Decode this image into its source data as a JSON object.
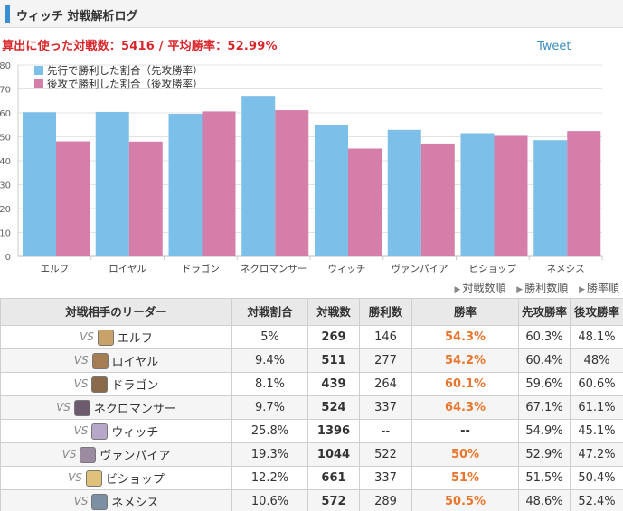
{
  "header": {
    "title": "ウィッチ 対戦解析ログ"
  },
  "summary": {
    "text": "算出に使った対戦数：5416 / 平均勝率：52.99%"
  },
  "tweet_label": "Tweet",
  "colors": {
    "first": "#7cbfe9",
    "second": "#d57ea9",
    "accent": "#3a8fd2",
    "rate": "#e8762d"
  },
  "chart_data": {
    "type": "bar",
    "categories": [
      "エルフ",
      "ロイヤル",
      "ドラゴン",
      "ネクロマンサー",
      "ウィッチ",
      "ヴァンパイア",
      "ビショップ",
      "ネメシス"
    ],
    "series": [
      {
        "name": "先行で勝利した割合（先攻勝率）",
        "values": [
          60.3,
          60.4,
          59.6,
          67.1,
          54.9,
          52.9,
          51.5,
          48.6
        ]
      },
      {
        "name": "後攻で勝利した割合（後攻勝率）",
        "values": [
          48.1,
          48,
          60.6,
          61.1,
          45.1,
          47.2,
          50.4,
          52.4
        ]
      }
    ],
    "ylim": [
      0,
      80
    ],
    "yticks": [
      0,
      10,
      20,
      30,
      40,
      50,
      60,
      70,
      80
    ],
    "grid": true,
    "legend": "top-left"
  },
  "sort_links": [
    "対戦数順",
    "勝利数順",
    "勝率順"
  ],
  "table": {
    "headers": [
      "対戦相手のリーダー",
      "対戦割合",
      "対戦数",
      "勝利数",
      "勝率",
      "先攻勝率",
      "後攻勝率"
    ],
    "vs_label": "VS",
    "rows": [
      {
        "name": "エルフ",
        "ratio": "5%",
        "games": "269",
        "wins": "146",
        "rate": "54.3%",
        "first": "60.3%",
        "second": "48.1%",
        "icon": "elf-leader-icon",
        "icon_color": "#c9a26a"
      },
      {
        "name": "ロイヤル",
        "ratio": "9.4%",
        "games": "511",
        "wins": "277",
        "rate": "54.2%",
        "first": "60.4%",
        "second": "48%",
        "icon": "royal-leader-icon",
        "icon_color": "#a67c52"
      },
      {
        "name": "ドラゴン",
        "ratio": "8.1%",
        "games": "439",
        "wins": "264",
        "rate": "60.1%",
        "first": "59.6%",
        "second": "60.6%",
        "icon": "dragon-leader-icon",
        "icon_color": "#8a6a4a"
      },
      {
        "name": "ネクロマンサー",
        "ratio": "9.7%",
        "games": "524",
        "wins": "337",
        "rate": "64.3%",
        "first": "67.1%",
        "second": "61.1%",
        "icon": "necromancer-leader-icon",
        "icon_color": "#6d5a6e"
      },
      {
        "name": "ウィッチ",
        "ratio": "25.8%",
        "games": "1396",
        "wins": "--",
        "rate": "--",
        "first": "54.9%",
        "second": "45.1%",
        "icon": "witch-leader-icon",
        "icon_color": "#b7a8c9"
      },
      {
        "name": "ヴァンパイア",
        "ratio": "19.3%",
        "games": "1044",
        "wins": "522",
        "rate": "50%",
        "first": "52.9%",
        "second": "47.2%",
        "icon": "vampire-leader-icon",
        "icon_color": "#9b8aa0"
      },
      {
        "name": "ビショップ",
        "ratio": "12.2%",
        "games": "661",
        "wins": "337",
        "rate": "51%",
        "first": "51.5%",
        "second": "50.4%",
        "icon": "bishop-leader-icon",
        "icon_color": "#e0c17a"
      },
      {
        "name": "ネメシス",
        "ratio": "10.6%",
        "games": "572",
        "wins": "289",
        "rate": "50.5%",
        "first": "48.6%",
        "second": "52.4%",
        "icon": "nemesis-leader-icon",
        "icon_color": "#7d8fa3"
      }
    ]
  }
}
